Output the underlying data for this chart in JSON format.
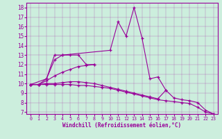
{
  "xlabel": "Windchill (Refroidissement éolien,°C)",
  "bg_color": "#cceedd",
  "line_color": "#990099",
  "xlim": [
    -0.5,
    23.5
  ],
  "ylim": [
    6.8,
    18.5
  ],
  "yticks": [
    7,
    8,
    9,
    10,
    11,
    12,
    13,
    14,
    15,
    16,
    17,
    18
  ],
  "xticks": [
    0,
    1,
    2,
    3,
    4,
    5,
    6,
    7,
    8,
    9,
    10,
    11,
    12,
    13,
    14,
    15,
    16,
    17,
    18,
    19,
    20,
    21,
    22,
    23
  ],
  "series": [
    {
      "x": [
        0,
        1,
        2,
        3,
        4,
        5,
        6,
        7,
        8
      ],
      "y": [
        9.9,
        9.9,
        10.5,
        13.0,
        13.0,
        13.0,
        13.0,
        12.0,
        12.0
      ]
    },
    {
      "x": [
        0,
        2,
        3,
        4,
        10,
        11,
        12,
        13,
        14,
        15,
        16,
        17
      ],
      "y": [
        9.9,
        10.5,
        12.5,
        13.0,
        13.5,
        16.5,
        15.0,
        18.0,
        14.8,
        10.5,
        10.7,
        9.3
      ]
    },
    {
      "x": [
        0,
        1,
        2,
        3,
        4,
        5,
        6,
        7,
        8
      ],
      "y": [
        9.9,
        9.9,
        10.3,
        10.8,
        11.2,
        11.5,
        11.8,
        11.9,
        12.0
      ]
    },
    {
      "x": [
        0,
        1,
        2,
        3,
        4,
        5,
        6,
        7,
        8,
        9,
        10,
        11,
        12,
        13,
        14,
        15,
        16,
        17,
        18,
        19,
        20,
        21,
        22,
        23
      ],
      "y": [
        9.9,
        9.9,
        10.0,
        10.0,
        10.1,
        10.2,
        10.2,
        10.1,
        10.0,
        9.8,
        9.6,
        9.4,
        9.2,
        9.0,
        8.8,
        8.6,
        8.4,
        9.3,
        8.5,
        8.3,
        8.2,
        8.0,
        7.2,
        6.8
      ]
    },
    {
      "x": [
        0,
        1,
        2,
        3,
        4,
        5,
        6,
        7,
        8,
        9,
        10,
        11,
        12,
        13,
        14,
        15,
        16,
        17,
        18,
        19,
        20,
        21,
        22,
        23
      ],
      "y": [
        9.9,
        9.9,
        9.9,
        9.9,
        9.9,
        9.9,
        9.8,
        9.8,
        9.7,
        9.6,
        9.5,
        9.3,
        9.1,
        8.9,
        8.7,
        8.5,
        8.3,
        8.2,
        8.1,
        8.0,
        7.9,
        7.5,
        7.0,
        6.8
      ]
    }
  ]
}
